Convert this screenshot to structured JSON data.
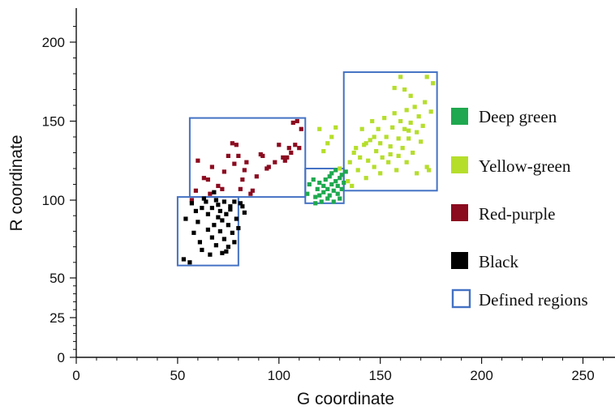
{
  "chart_data": {
    "type": "scatter",
    "title": "",
    "xlabel": "G coordinate",
    "ylabel": "R coordinate",
    "xlim": [
      0,
      270
    ],
    "ylim": [
      0,
      220
    ],
    "y_scale_note": "nonlinear",
    "x_ticks": [
      0,
      50,
      100,
      150,
      200,
      250
    ],
    "y_ticks": [
      0,
      25,
      50,
      100,
      150,
      200
    ],
    "x_tick_labels": [
      "0",
      "50",
      "100",
      "150",
      "200",
      "250"
    ],
    "y_tick_labels": [
      "0",
      "25",
      "50",
      "100",
      "150",
      "200"
    ],
    "grid": false,
    "legend_position": "right",
    "series": [
      {
        "name": "Deep green",
        "color": "#1fa84f",
        "points": [
          [
            114,
            104
          ],
          [
            115,
            110
          ],
          [
            117,
            113
          ],
          [
            118,
            102
          ],
          [
            119,
            107
          ],
          [
            120,
            111
          ],
          [
            121,
            99
          ],
          [
            122,
            105
          ],
          [
            122,
            109
          ],
          [
            123,
            113
          ],
          [
            124,
            101
          ],
          [
            124,
            107
          ],
          [
            125,
            115
          ],
          [
            125,
            103
          ],
          [
            126,
            110
          ],
          [
            126,
            117
          ],
          [
            127,
            106
          ],
          [
            128,
            112
          ],
          [
            128,
            119
          ],
          [
            129,
            104
          ],
          [
            129,
            109
          ],
          [
            130,
            114
          ],
          [
            130,
            101
          ],
          [
            131,
            107
          ],
          [
            131,
            116
          ],
          [
            132,
            111
          ],
          [
            133,
            118
          ],
          [
            127,
            99
          ],
          [
            120,
            103
          ],
          [
            118,
            98
          ]
        ]
      },
      {
        "name": "Yellow-green",
        "color": "#b5de2b",
        "points": [
          [
            120,
            145
          ],
          [
            122,
            131
          ],
          [
            124,
            136
          ],
          [
            126,
            140
          ],
          [
            128,
            146
          ],
          [
            130,
            120
          ],
          [
            134,
            112
          ],
          [
            135,
            124
          ],
          [
            136,
            109
          ],
          [
            137,
            130
          ],
          [
            138,
            133
          ],
          [
            139,
            119
          ],
          [
            140,
            127
          ],
          [
            141,
            145
          ],
          [
            142,
            135
          ],
          [
            143,
            114
          ],
          [
            144,
            125
          ],
          [
            145,
            138
          ],
          [
            146,
            150
          ],
          [
            147,
            121
          ],
          [
            148,
            131
          ],
          [
            149,
            145
          ],
          [
            150,
            117
          ],
          [
            150,
            136
          ],
          [
            151,
            127
          ],
          [
            152,
            152
          ],
          [
            153,
            140
          ],
          [
            154,
            124
          ],
          [
            155,
            134
          ],
          [
            156,
            146
          ],
          [
            157,
            171
          ],
          [
            157,
            155
          ],
          [
            158,
            119
          ],
          [
            159,
            128
          ],
          [
            159,
            139
          ],
          [
            160,
            150
          ],
          [
            160,
            178
          ],
          [
            161,
            133
          ],
          [
            162,
            145
          ],
          [
            163,
            124
          ],
          [
            163,
            157
          ],
          [
            164,
            139
          ],
          [
            165,
            149
          ],
          [
            165,
            166
          ],
          [
            166,
            130
          ],
          [
            167,
            159
          ],
          [
            168,
            143
          ],
          [
            168,
            117
          ],
          [
            169,
            153
          ],
          [
            170,
            137
          ],
          [
            171,
            147
          ],
          [
            172,
            162
          ],
          [
            173,
            121
          ],
          [
            173,
            178
          ],
          [
            174,
            119
          ],
          [
            175,
            156
          ],
          [
            176,
            174
          ],
          [
            164,
            144
          ],
          [
            155,
            129
          ],
          [
            147,
            140
          ],
          [
            162,
            170
          ],
          [
            143,
            136
          ]
        ]
      },
      {
        "name": "Red-purple",
        "color": "#8b0b1f",
        "points": [
          [
            57,
            100
          ],
          [
            59,
            106
          ],
          [
            60,
            125
          ],
          [
            63,
            114
          ],
          [
            65,
            113
          ],
          [
            66,
            104
          ],
          [
            67,
            121
          ],
          [
            70,
            109
          ],
          [
            72,
            107
          ],
          [
            73,
            118
          ],
          [
            75,
            128
          ],
          [
            77,
            136
          ],
          [
            78,
            123
          ],
          [
            79,
            135
          ],
          [
            80,
            128
          ],
          [
            81,
            107
          ],
          [
            82,
            113
          ],
          [
            83,
            119
          ],
          [
            84,
            124
          ],
          [
            86,
            104
          ],
          [
            87,
            106
          ],
          [
            89,
            115
          ],
          [
            91,
            129
          ],
          [
            92,
            128
          ],
          [
            94,
            120
          ],
          [
            95,
            121
          ],
          [
            98,
            124
          ],
          [
            100,
            135
          ],
          [
            102,
            127
          ],
          [
            103,
            125
          ],
          [
            104,
            127
          ],
          [
            105,
            133
          ],
          [
            106,
            130
          ],
          [
            107,
            149
          ],
          [
            108,
            135
          ],
          [
            109,
            150
          ],
          [
            110,
            133
          ],
          [
            111,
            145
          ]
        ]
      },
      {
        "name": "Black",
        "color": "#000000",
        "points": [
          [
            53,
            62
          ],
          [
            54,
            88
          ],
          [
            56,
            60
          ],
          [
            57,
            98
          ],
          [
            58,
            79
          ],
          [
            59,
            93
          ],
          [
            60,
            86
          ],
          [
            61,
            73
          ],
          [
            62,
            68
          ],
          [
            63,
            101
          ],
          [
            64,
            99
          ],
          [
            65,
            81
          ],
          [
            65,
            91
          ],
          [
            66,
            65
          ],
          [
            67,
            76
          ],
          [
            67,
            95
          ],
          [
            68,
            84
          ],
          [
            69,
            71
          ],
          [
            69,
            100
          ],
          [
            70,
            89
          ],
          [
            70,
            97
          ],
          [
            71,
            80
          ],
          [
            71,
            93
          ],
          [
            72,
            66
          ],
          [
            72,
            87
          ],
          [
            73,
            75
          ],
          [
            73,
            99
          ],
          [
            74,
            91
          ],
          [
            75,
            70
          ],
          [
            75,
            84
          ],
          [
            76,
            94
          ],
          [
            77,
            79
          ],
          [
            78,
            99
          ],
          [
            78,
            73
          ],
          [
            79,
            88
          ],
          [
            80,
            82
          ],
          [
            81,
            98
          ],
          [
            82,
            96
          ],
          [
            83,
            92
          ],
          [
            74,
            67
          ],
          [
            68,
            105
          ],
          [
            62,
            95
          ],
          [
            76,
            96
          ]
        ]
      }
    ],
    "regions_legend": "Defined regions",
    "regions_color": "#4472c4",
    "regions": [
      {
        "x0": 50,
        "x1": 80,
        "y0": 58,
        "y1": 102
      },
      {
        "x0": 56,
        "x1": 113,
        "y0": 102,
        "y1": 152
      },
      {
        "x0": 113,
        "x1": 132,
        "y0": 98,
        "y1": 120
      },
      {
        "x0": 132,
        "x1": 178,
        "y0": 106,
        "y1": 181
      }
    ]
  }
}
